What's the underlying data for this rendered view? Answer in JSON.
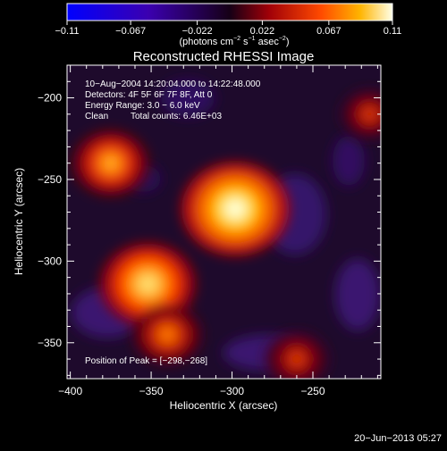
{
  "colorbar": {
    "tick_labels": [
      "−0.11",
      "−0.067",
      "−0.022",
      "0.022",
      "0.067",
      "0.11"
    ],
    "tick_values": [
      -0.11,
      -0.067,
      -0.022,
      0.022,
      0.067,
      0.11
    ],
    "range": [
      -0.11,
      0.11
    ],
    "unit_main": "(photons cm",
    "unit_exp1": "−2",
    "unit_mid": " s",
    "unit_exp2": "−1",
    "unit_tail": " asec",
    "unit_exp3": "−2",
    "unit_close": ")"
  },
  "chart_data": {
    "type": "heatmap",
    "title": "Reconstructed RHESSI Image",
    "xlabel": "Heliocentric X (arcsec)",
    "ylabel": "Heliocentric Y (arcsec)",
    "xlim": [
      -402,
      -208
    ],
    "ylim": [
      -372,
      -180
    ],
    "x_ticks": [
      -400,
      -350,
      -300,
      -250
    ],
    "x_tick_labels": [
      "−400",
      "−350",
      "−300",
      "−250"
    ],
    "y_ticks": [
      -200,
      -250,
      -300,
      -350
    ],
    "y_tick_labels": [
      "−200",
      "−250",
      "−300",
      "−350"
    ],
    "sources": [
      {
        "x": -298,
        "y": -268,
        "value": 0.11
      },
      {
        "x": -352,
        "y": -314,
        "value": 0.09
      },
      {
        "x": -375,
        "y": -240,
        "value": 0.06
      },
      {
        "x": -340,
        "y": -345,
        "value": 0.05
      },
      {
        "x": -260,
        "y": -360,
        "value": 0.04
      },
      {
        "x": -215,
        "y": -210,
        "value": 0.03
      }
    ],
    "annotations": {
      "time_range": "10−Aug−2004 14:20:04.000 to 14:22:48.000",
      "detectors": "Detectors: 4F 5F 6F 7F 8F, Att 0",
      "energy": "Energy Range: 3.0 − 6.0 keV",
      "clean_label": "Clean",
      "total_counts": "Total counts: 6.46E+03",
      "peak": "Position of Peak = [−298,−268]"
    }
  },
  "footer": {
    "date": "20−Jun−2013 05:27"
  }
}
